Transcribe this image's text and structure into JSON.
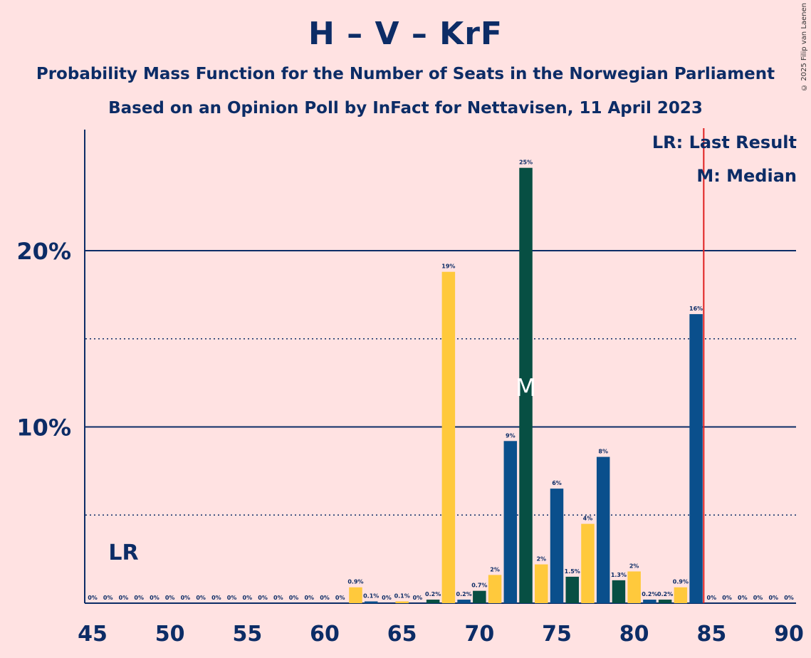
{
  "title": "H – V – KrF",
  "subtitle_1": "Probability Mass Function for the Number of Seats in the Norwegian Parliament",
  "subtitle_2": "Based on an Opinion Poll by InFact for Nettavisen, 11 April 2023",
  "copyright": "© 2025 Filip van Laenen",
  "legend": {
    "last_result": "LR: Last Result",
    "median": "M: Median"
  },
  "markers": {
    "last_result_label": "LR",
    "last_result_seat": 47,
    "median_label": "M",
    "median_seat": 73,
    "majority_line_seat": 85
  },
  "colors": {
    "background": "#ffe2e2",
    "text": "#0c2c66",
    "H": "#0a4f8c",
    "KrF": "#ffc93c",
    "V": "#074f43",
    "majority_line": "#e02020"
  },
  "chart_data": {
    "type": "bar",
    "xlim": [
      45,
      90
    ],
    "ylim": [
      0,
      27
    ],
    "x_ticks": [
      45,
      50,
      55,
      60,
      65,
      70,
      75,
      80,
      85,
      90
    ],
    "y_ticks_labeled": [
      {
        "value": 10,
        "label": "10%"
      },
      {
        "value": 20,
        "label": "20%"
      }
    ],
    "y_gridlines_solid": [
      10,
      20
    ],
    "y_gridlines_dotted": [
      5,
      15
    ],
    "bars": [
      {
        "seat": 45,
        "value": 0,
        "label": "0%",
        "color": "H"
      },
      {
        "seat": 46,
        "value": 0,
        "label": "0%",
        "color": "V"
      },
      {
        "seat": 47,
        "value": 0,
        "label": "0%",
        "color": "KrF"
      },
      {
        "seat": 48,
        "value": 0,
        "label": "0%",
        "color": "H"
      },
      {
        "seat": 49,
        "value": 0,
        "label": "0%",
        "color": "V"
      },
      {
        "seat": 50,
        "value": 0,
        "label": "0%",
        "color": "KrF"
      },
      {
        "seat": 51,
        "value": 0,
        "label": "0%",
        "color": "H"
      },
      {
        "seat": 52,
        "value": 0,
        "label": "0%",
        "color": "V"
      },
      {
        "seat": 53,
        "value": 0,
        "label": "0%",
        "color": "KrF"
      },
      {
        "seat": 54,
        "value": 0,
        "label": "0%",
        "color": "H"
      },
      {
        "seat": 55,
        "value": 0,
        "label": "0%",
        "color": "V"
      },
      {
        "seat": 56,
        "value": 0,
        "label": "0%",
        "color": "KrF"
      },
      {
        "seat": 57,
        "value": 0,
        "label": "0%",
        "color": "H"
      },
      {
        "seat": 58,
        "value": 0,
        "label": "0%",
        "color": "V"
      },
      {
        "seat": 59,
        "value": 0,
        "label": "0%",
        "color": "KrF"
      },
      {
        "seat": 60,
        "value": 0,
        "label": "0%",
        "color": "H"
      },
      {
        "seat": 61,
        "value": 0,
        "label": "0%",
        "color": "V"
      },
      {
        "seat": 62,
        "value": 0.9,
        "label": "0.9%",
        "color": "KrF"
      },
      {
        "seat": 63,
        "value": 0.1,
        "label": "0.1%",
        "color": "H"
      },
      {
        "seat": 64,
        "value": 0,
        "label": "0%",
        "color": "V"
      },
      {
        "seat": 65,
        "value": 0.1,
        "label": "0.1%",
        "color": "KrF"
      },
      {
        "seat": 66,
        "value": 0,
        "label": "0%",
        "color": "H"
      },
      {
        "seat": 67,
        "value": 0.2,
        "label": "0.2%",
        "color": "V"
      },
      {
        "seat": 68,
        "value": 18.8,
        "label": "19%",
        "color": "KrF"
      },
      {
        "seat": 69,
        "value": 0.2,
        "label": "0.2%",
        "color": "H"
      },
      {
        "seat": 70,
        "value": 0.7,
        "label": "0.7%",
        "color": "V"
      },
      {
        "seat": 71,
        "value": 1.6,
        "label": "2%",
        "color": "KrF"
      },
      {
        "seat": 72,
        "value": 9.2,
        "label": "9%",
        "color": "H"
      },
      {
        "seat": 73,
        "value": 24.7,
        "label": "25%",
        "color": "V"
      },
      {
        "seat": 74,
        "value": 2.2,
        "label": "2%",
        "color": "KrF"
      },
      {
        "seat": 75,
        "value": 6.5,
        "label": "6%",
        "color": "H"
      },
      {
        "seat": 76,
        "value": 1.5,
        "label": "1.5%",
        "color": "V"
      },
      {
        "seat": 77,
        "value": 4.5,
        "label": "4%",
        "color": "KrF"
      },
      {
        "seat": 78,
        "value": 8.3,
        "label": "8%",
        "color": "H"
      },
      {
        "seat": 79,
        "value": 1.3,
        "label": "1.3%",
        "color": "V"
      },
      {
        "seat": 80,
        "value": 1.8,
        "label": "2%",
        "color": "KrF"
      },
      {
        "seat": 81,
        "value": 0.2,
        "label": "0.2%",
        "color": "H"
      },
      {
        "seat": 82,
        "value": 0.2,
        "label": "0.2%",
        "color": "V"
      },
      {
        "seat": 83,
        "value": 0.9,
        "label": "0.9%",
        "color": "KrF"
      },
      {
        "seat": 84,
        "value": 16.4,
        "label": "16%",
        "color": "H"
      },
      {
        "seat": 85,
        "value": 0,
        "label": "0%",
        "color": "V"
      },
      {
        "seat": 86,
        "value": 0,
        "label": "0%",
        "color": "KrF"
      },
      {
        "seat": 87,
        "value": 0,
        "label": "0%",
        "color": "H"
      },
      {
        "seat": 88,
        "value": 0,
        "label": "0%",
        "color": "V"
      },
      {
        "seat": 89,
        "value": 0,
        "label": "0%",
        "color": "KrF"
      },
      {
        "seat": 90,
        "value": 0,
        "label": "0%",
        "color": "H"
      }
    ]
  }
}
